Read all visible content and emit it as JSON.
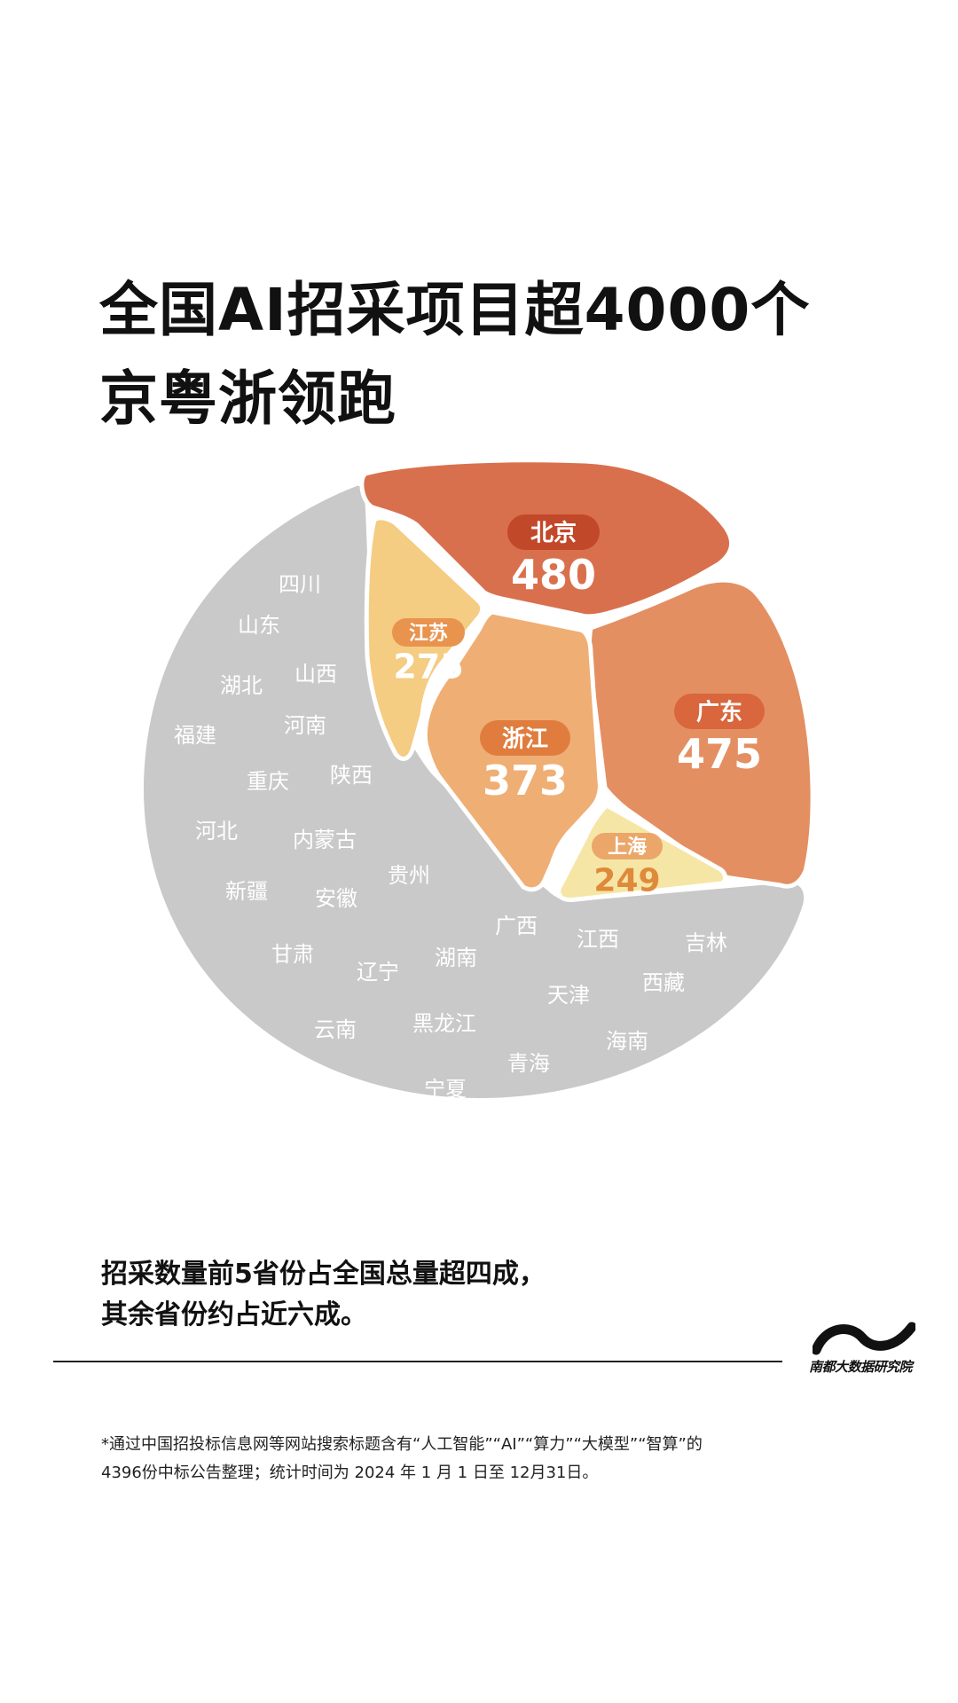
{
  "title": {
    "line1": "全国AI招采项目超4000个",
    "line2": "京粤浙领跑"
  },
  "chart_data": {
    "type": "voronoi-treemap",
    "unit": "个",
    "top_provinces": [
      {
        "name": "北京",
        "value": 480,
        "color": "#d9704d",
        "badge_color": "#c2482a",
        "value_color": "#ffffff"
      },
      {
        "name": "广东",
        "value": 475,
        "color": "#e48f61",
        "badge_color": "#d9663c",
        "value_color": "#ffffff"
      },
      {
        "name": "浙江",
        "value": 373,
        "color": "#efae74",
        "badge_color": "#e07d3e",
        "value_color": "#ffffff"
      },
      {
        "name": "江苏",
        "value": 275,
        "color": "#f4cc82",
        "badge_color": "#e8934e",
        "value_color": "#ffffff"
      },
      {
        "name": "上海",
        "value": 249,
        "color": "#f6e6a6",
        "badge_color": "#eba669",
        "value_color": "#de8a3a"
      }
    ],
    "other_provinces": {
      "color": "#c9c9c9",
      "names": [
        "四川",
        "山东",
        "湖北",
        "山西",
        "福建",
        "河南",
        "重庆",
        "陕西",
        "河北",
        "内蒙古",
        "贵州",
        "新疆",
        "安徽",
        "广西",
        "江西",
        "吉林",
        "甘肃",
        "辽宁",
        "湖南",
        "西藏",
        "天津",
        "云南",
        "黑龙江",
        "海南",
        "青海",
        "宁夏"
      ]
    }
  },
  "summary": {
    "line1": "招采数量前5省份占全国总量超四成，",
    "line2": "其余省份约占近六成。"
  },
  "logo": {
    "text": "南都大数据研究院"
  },
  "footnote": {
    "line1": "*通过中国招投标信息网等网站搜索标题含有“人工智能”“AI”“算力”“大模型”“智算”的",
    "line2": "4396份中标公告整理；统计时间为 2024 年 1 月 1 日至 12月31日。"
  }
}
